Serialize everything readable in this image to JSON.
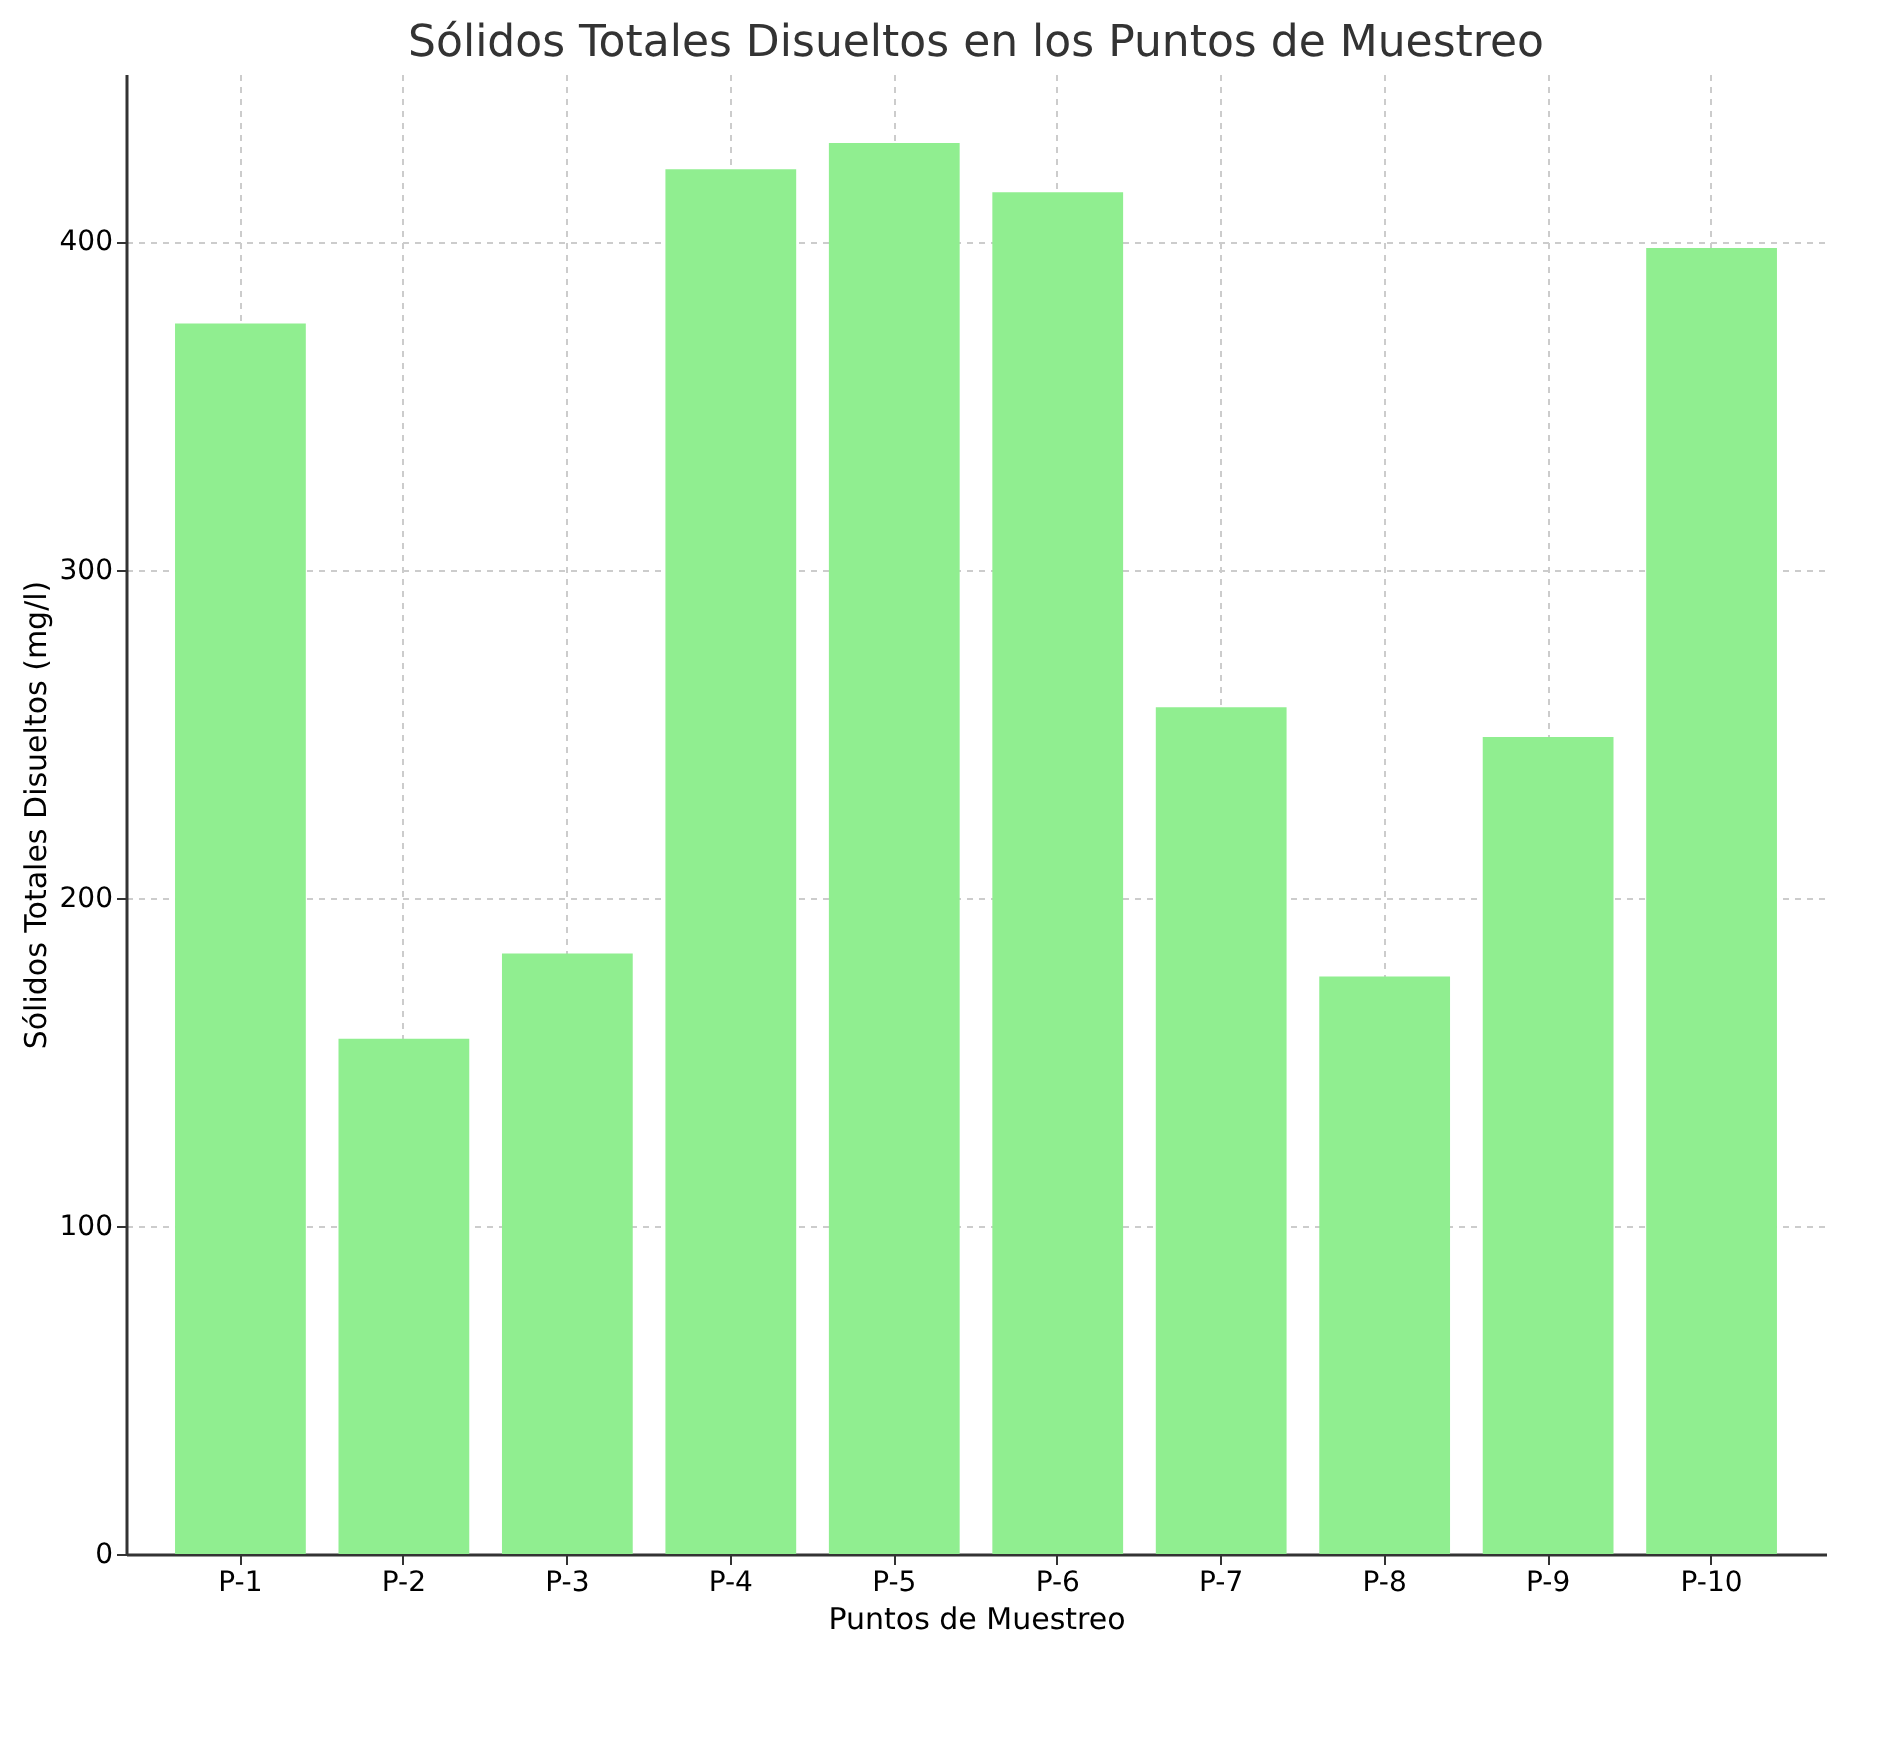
{
  "chart_data": {
    "type": "bar",
    "title": "Sólidos Totales Disueltos en los Puntos de Muestreo",
    "xlabel": "Puntos de Muestreo",
    "ylabel": "Sólidos Totales Disueltos (mg/l)",
    "categories": [
      "P-1",
      "P-2",
      "P-3",
      "P-4",
      "P-5",
      "P-6",
      "P-7",
      "P-8",
      "P-9",
      "P-10"
    ],
    "values": [
      375,
      157,
      183,
      422,
      430,
      415,
      258,
      176,
      249,
      398
    ],
    "color": "#90ee90",
    "ylim": [
      0,
      451
    ],
    "yticks": [
      0,
      100,
      200,
      300,
      400
    ],
    "grid": true
  }
}
